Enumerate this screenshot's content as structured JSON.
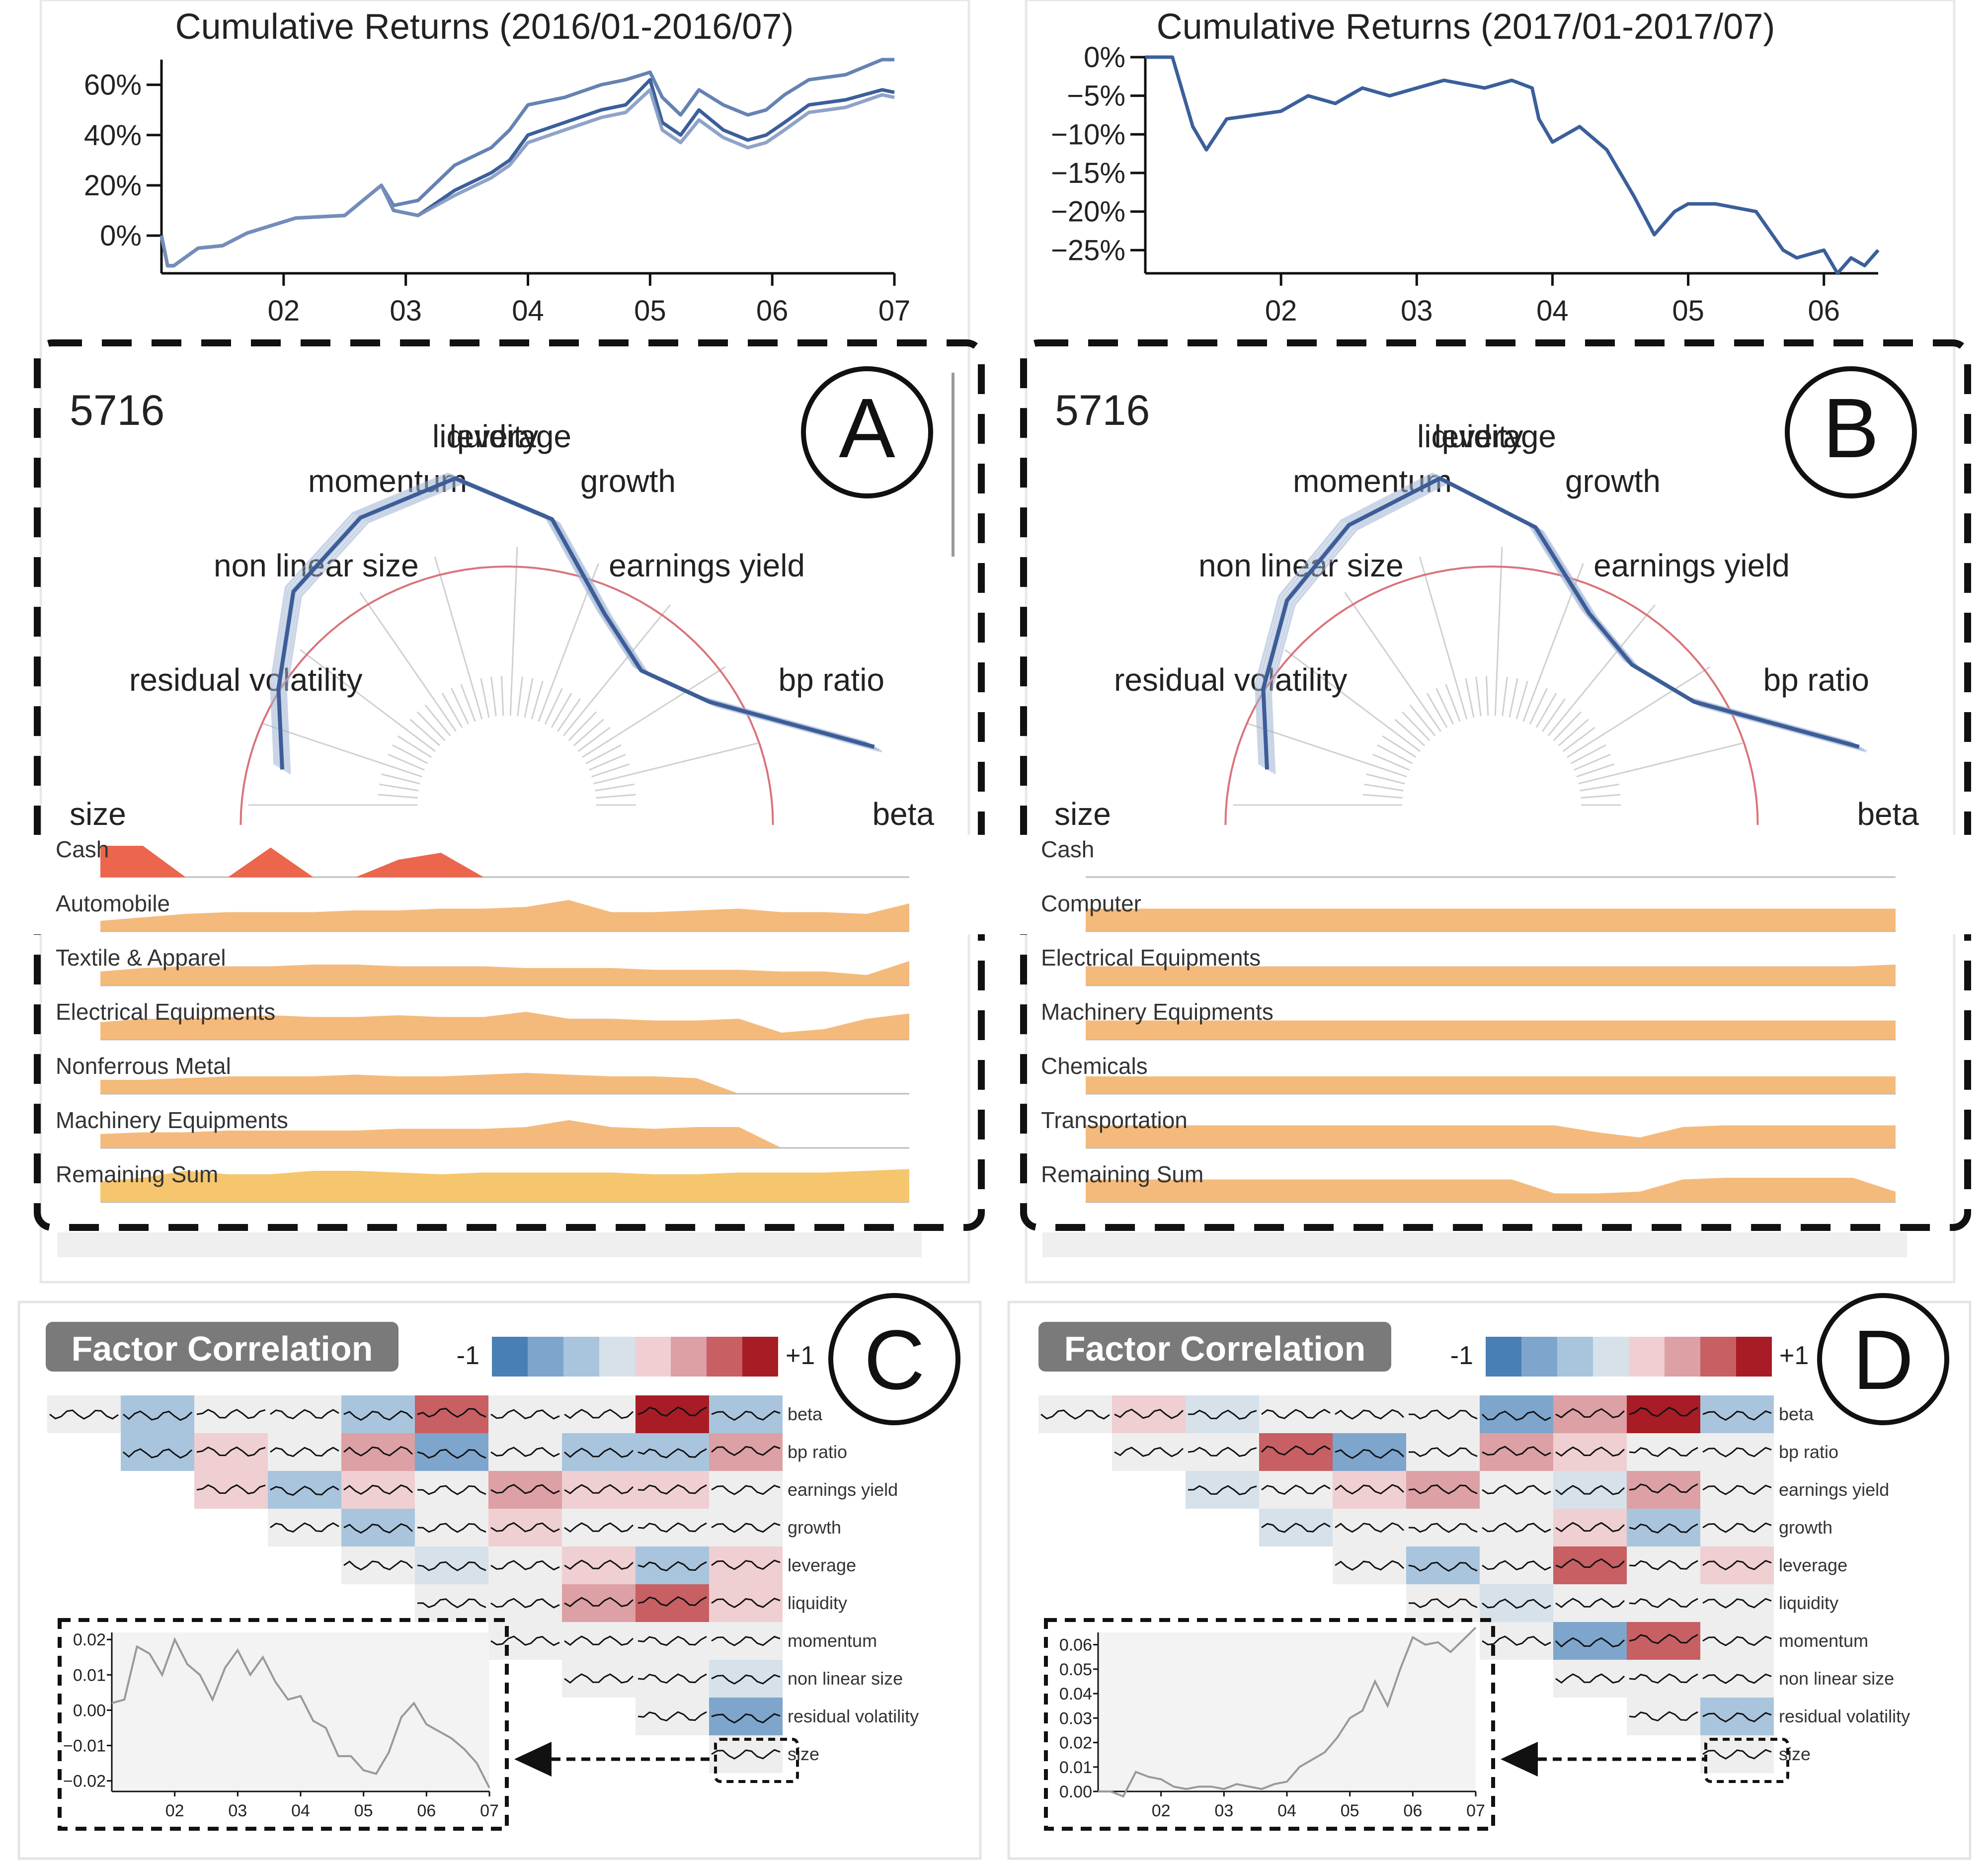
{
  "chart_data": [
    {
      "id": "returns_2016",
      "type": "line",
      "title": "Cumulative Returns (2016/01-2016/07)",
      "x_ticks": [
        "02",
        "03",
        "04",
        "05",
        "06",
        "07"
      ],
      "y_ticks": [
        "0%",
        "20%",
        "40%",
        "60%"
      ],
      "ylim": [
        -15,
        70
      ],
      "x_domain": [
        1,
        7
      ],
      "series": [
        {
          "name": "portfolio",
          "x": [
            1.0,
            1.05,
            1.1,
            1.3,
            1.5,
            1.7,
            1.9,
            2.1,
            2.5,
            2.8,
            2.9,
            3.1,
            3.4,
            3.7,
            3.85,
            4.0,
            4.3,
            4.6,
            4.8,
            5.0,
            5.1,
            5.25,
            5.4,
            5.6,
            5.8,
            5.95,
            6.1,
            6.3,
            6.6,
            6.9,
            7.0
          ],
          "values": [
            0,
            -12,
            -12,
            -5,
            -4,
            1,
            4,
            7,
            8,
            20,
            10,
            8,
            18,
            25,
            30,
            40,
            45,
            50,
            52,
            62,
            45,
            40,
            50,
            42,
            38,
            40,
            45,
            52,
            54,
            58,
            57
          ]
        },
        {
          "name": "benchmark-a",
          "x": [
            1.0,
            1.05,
            1.1,
            1.3,
            1.5,
            1.7,
            1.9,
            2.1,
            2.5,
            2.8,
            2.9,
            3.1,
            3.4,
            3.7,
            3.85,
            4.0,
            4.3,
            4.6,
            4.8,
            5.0,
            5.1,
            5.25,
            5.4,
            5.6,
            5.8,
            5.95,
            6.1,
            6.3,
            6.6,
            6.9,
            7.0
          ],
          "values": [
            0,
            -12,
            -12,
            -5,
            -4,
            1,
            4,
            7,
            8,
            20,
            12,
            14,
            28,
            35,
            42,
            52,
            55,
            60,
            62,
            65,
            55,
            48,
            58,
            52,
            48,
            50,
            56,
            62,
            64,
            70,
            70
          ]
        },
        {
          "name": "benchmark-b",
          "x": [
            1.0,
            1.05,
            1.1,
            1.3,
            1.5,
            1.7,
            1.9,
            2.1,
            2.5,
            2.8,
            2.9,
            3.1,
            3.4,
            3.7,
            3.85,
            4.0,
            4.3,
            4.6,
            4.8,
            5.0,
            5.1,
            5.25,
            5.4,
            5.6,
            5.8,
            5.95,
            6.1,
            6.3,
            6.6,
            6.9,
            7.0
          ],
          "values": [
            0,
            -12,
            -12,
            -5,
            -4,
            1,
            4,
            7,
            8,
            20,
            10,
            8,
            16,
            23,
            28,
            37,
            42,
            47,
            49,
            58,
            42,
            37,
            46,
            39,
            35,
            37,
            42,
            49,
            51,
            56,
            55
          ]
        }
      ]
    },
    {
      "id": "returns_2017",
      "type": "line",
      "title": "Cumulative Returns (2017/01-2017/07)",
      "x_ticks": [
        "02",
        "03",
        "04",
        "05",
        "06"
      ],
      "y_ticks": [
        "0%",
        "−5%",
        "−10%",
        "−15%",
        "−20%",
        "−25%"
      ],
      "ylim": [
        -28,
        0
      ],
      "x_domain": [
        1,
        6.4
      ],
      "series": [
        {
          "name": "portfolio",
          "x": [
            1.0,
            1.2,
            1.35,
            1.45,
            1.6,
            2.0,
            2.2,
            2.4,
            2.6,
            2.8,
            3.0,
            3.2,
            3.5,
            3.7,
            3.85,
            3.9,
            4.0,
            4.2,
            4.4,
            4.6,
            4.75,
            4.9,
            5.0,
            5.2,
            5.5,
            5.7,
            5.8,
            6.0,
            6.1,
            6.2,
            6.3,
            6.4
          ],
          "values": [
            0,
            0,
            -9,
            -12,
            -8,
            -7,
            -5,
            -6,
            -4,
            -5,
            -4,
            -3,
            -4,
            -3,
            -4,
            -8,
            -11,
            -9,
            -12,
            -18,
            -23,
            -20,
            -19,
            -19,
            -20,
            -25,
            -26,
            -25,
            -28,
            -26,
            -27,
            -25
          ]
        }
      ]
    },
    {
      "id": "factor_radar_A",
      "type": "radar",
      "label_id": "5716",
      "axes": [
        "size",
        "residual volatility",
        "non linear size",
        "momentum",
        "liquidity",
        "leverage",
        "growth",
        "earnings yield",
        "bp ratio",
        "beta"
      ],
      "portfolio": [
        0.55,
        0.62,
        0.73,
        0.78,
        0.8,
        0.7,
        0.52,
        0.46,
        0.55,
        0.9
      ],
      "benchmark": [
        0.42,
        0.42,
        0.42,
        0.42,
        0.42,
        0.42,
        0.42,
        0.42,
        0.42,
        0.42
      ]
    },
    {
      "id": "factor_radar_B",
      "type": "radar",
      "label_id": "5716",
      "axes": [
        "size",
        "residual volatility",
        "non linear size",
        "momentum",
        "liquidity",
        "leverage",
        "growth",
        "earnings yield",
        "bp ratio",
        "beta"
      ],
      "portfolio": [
        0.55,
        0.62,
        0.7,
        0.76,
        0.8,
        0.68,
        0.52,
        0.48,
        0.55,
        0.9
      ],
      "benchmark": [
        0.42,
        0.42,
        0.42,
        0.42,
        0.42,
        0.42,
        0.42,
        0.42,
        0.42,
        0.42
      ]
    },
    {
      "id": "industry_A",
      "type": "area",
      "rows": [
        {
          "name": "Cash",
          "values": [
            0.9,
            0.9,
            0.0,
            0.0,
            0.85,
            0.0,
            0.0,
            0.5,
            0.7,
            0.0,
            0.0,
            0.0,
            0.0,
            0.0,
            0.0,
            0.0,
            0.0,
            0.0,
            0.0,
            0.0
          ],
          "color": "#e9553a"
        },
        {
          "name": "Automobile",
          "values": [
            0.3,
            0.4,
            0.5,
            0.55,
            0.55,
            0.55,
            0.6,
            0.6,
            0.65,
            0.65,
            0.7,
            0.9,
            0.55,
            0.55,
            0.6,
            0.65,
            0.55,
            0.55,
            0.5,
            0.8
          ],
          "color": "#f3b26e"
        },
        {
          "name": "Textile & Apparel",
          "values": [
            0.4,
            0.5,
            0.55,
            0.55,
            0.55,
            0.6,
            0.6,
            0.55,
            0.55,
            0.55,
            0.5,
            0.5,
            0.5,
            0.45,
            0.45,
            0.45,
            0.4,
            0.4,
            0.3,
            0.7
          ],
          "color": "#f3b26e"
        },
        {
          "name": "Electrical Equipments",
          "values": [
            0.5,
            0.6,
            0.6,
            0.65,
            0.7,
            0.65,
            0.65,
            0.7,
            0.65,
            0.65,
            0.8,
            0.6,
            0.6,
            0.55,
            0.55,
            0.6,
            0.2,
            0.3,
            0.6,
            0.75
          ],
          "color": "#f3b26e"
        },
        {
          "name": "Nonferrous Metal",
          "values": [
            0.4,
            0.4,
            0.45,
            0.5,
            0.5,
            0.5,
            0.55,
            0.5,
            0.5,
            0.55,
            0.6,
            0.55,
            0.5,
            0.5,
            0.45,
            0.0,
            0.0,
            0.0,
            0.0,
            0.0
          ],
          "color": "#f3b26e"
        },
        {
          "name": "Machinery Equipments",
          "values": [
            0.4,
            0.45,
            0.45,
            0.5,
            0.5,
            0.5,
            0.5,
            0.55,
            0.55,
            0.55,
            0.6,
            0.8,
            0.6,
            0.55,
            0.6,
            0.6,
            0.0,
            0.0,
            0.0,
            0.0
          ],
          "color": "#f3b26e"
        },
        {
          "name": "Remaining Sum",
          "values": [
            0.6,
            0.7,
            0.9,
            0.8,
            0.8,
            0.9,
            0.9,
            0.85,
            0.8,
            0.85,
            0.85,
            0.85,
            0.85,
            0.8,
            0.8,
            0.85,
            0.85,
            0.85,
            0.9,
            0.95
          ],
          "color": "#f5c05e"
        }
      ]
    },
    {
      "id": "industry_B",
      "type": "area",
      "rows": [
        {
          "name": "Cash",
          "values": [
            0,
            0,
            0,
            0,
            0,
            0,
            0,
            0,
            0,
            0,
            0,
            0,
            0,
            0,
            0,
            0,
            0,
            0,
            0,
            0
          ],
          "color": "#e9553a"
        },
        {
          "name": "Computer",
          "values": [
            0.65,
            0.65,
            0.65,
            0.65,
            0.65,
            0.65,
            0.65,
            0.65,
            0.65,
            0.65,
            0.65,
            0.65,
            0.65,
            0.65,
            0.65,
            0.65,
            0.65,
            0.65,
            0.65,
            0.65
          ],
          "color": "#f3b26e"
        },
        {
          "name": "Electrical Equipments",
          "values": [
            0.55,
            0.55,
            0.55,
            0.55,
            0.55,
            0.55,
            0.55,
            0.55,
            0.55,
            0.55,
            0.55,
            0.55,
            0.55,
            0.55,
            0.55,
            0.55,
            0.55,
            0.55,
            0.55,
            0.6
          ],
          "color": "#f3b26e"
        },
        {
          "name": "Machinery Equipments",
          "values": [
            0.55,
            0.55,
            0.55,
            0.55,
            0.55,
            0.55,
            0.55,
            0.55,
            0.55,
            0.55,
            0.55,
            0.55,
            0.55,
            0.55,
            0.55,
            0.55,
            0.55,
            0.55,
            0.55,
            0.55
          ],
          "color": "#f3b26e"
        },
        {
          "name": "Chemicals",
          "values": [
            0.5,
            0.5,
            0.5,
            0.5,
            0.5,
            0.5,
            0.5,
            0.5,
            0.5,
            0.5,
            0.5,
            0.5,
            0.5,
            0.5,
            0.5,
            0.5,
            0.5,
            0.5,
            0.5,
            0.5
          ],
          "color": "#f3b26e"
        },
        {
          "name": "Transportation",
          "values": [
            0.65,
            0.65,
            0.65,
            0.65,
            0.65,
            0.65,
            0.65,
            0.65,
            0.65,
            0.65,
            0.65,
            0.65,
            0.45,
            0.3,
            0.6,
            0.65,
            0.65,
            0.65,
            0.65,
            0.65
          ],
          "color": "#f3b26e"
        },
        {
          "name": "Remaining Sum",
          "values": [
            0.65,
            0.65,
            0.65,
            0.65,
            0.65,
            0.65,
            0.65,
            0.65,
            0.65,
            0.65,
            0.65,
            0.25,
            0.25,
            0.3,
            0.65,
            0.7,
            0.7,
            0.7,
            0.7,
            0.3
          ],
          "color": "#f3b26e"
        }
      ]
    },
    {
      "id": "factor_correlation_C",
      "type": "heatmap",
      "title": "Factor Correlation",
      "scale_min": "-1",
      "scale_max": "+1",
      "scale_colors": [
        "#4a7fb5",
        "#7ea5cc",
        "#a9c5dd",
        "#d6e1ea",
        "#efcfd2",
        "#dca0a5",
        "#c75f63",
        "#a71c25"
      ],
      "factors": [
        "beta",
        "bp ratio",
        "earnings yield",
        "growth",
        "leverage",
        "liquidity",
        "momentum",
        "non linear size",
        "residual volatility",
        "size"
      ],
      "rows": [
        [
          0.0,
          -0.45,
          0.05,
          0.0,
          -0.4,
          0.6,
          0.0,
          0.05,
          0.85,
          -0.4
        ],
        [
          -0.45,
          0.1,
          0.0,
          0.3,
          -0.5,
          0.05,
          -0.3,
          -0.45,
          0.45
        ],
        [
          0.1,
          -0.35,
          0.1,
          0.0,
          0.25,
          0.15,
          0.1,
          0.0
        ],
        [
          0.0,
          -0.25,
          0.0,
          0.1,
          0.0,
          0.0,
          0.0
        ],
        [
          0.05,
          -0.2,
          0.05,
          0.15,
          -0.35,
          0.2
        ],
        [
          0.05,
          0.0,
          0.3,
          0.55,
          0.1
        ],
        [
          0.05,
          0.0,
          -0.05,
          0.0
        ],
        [
          0.0,
          0.0,
          -0.2
        ],
        [
          0.0,
          -0.6
        ],
        [
          0.0
        ]
      ],
      "inset": {
        "factor": "size",
        "x_ticks": [
          "02",
          "03",
          "04",
          "05",
          "06",
          "07"
        ],
        "y_ticks": [
          "0.02",
          "0.01",
          "0.00",
          "−0.01",
          "−0.02"
        ],
        "ylim": [
          -0.023,
          0.022
        ],
        "x": [
          1.0,
          1.2,
          1.4,
          1.6,
          1.8,
          2.0,
          2.2,
          2.4,
          2.6,
          2.8,
          3.0,
          3.2,
          3.4,
          3.6,
          3.8,
          4.0,
          4.2,
          4.4,
          4.6,
          4.8,
          5.0,
          5.2,
          5.4,
          5.6,
          5.8,
          6.0,
          6.2,
          6.4,
          6.6,
          6.8,
          7.0
        ],
        "values": [
          0.002,
          0.003,
          0.018,
          0.016,
          0.01,
          0.02,
          0.013,
          0.01,
          0.003,
          0.012,
          0.017,
          0.01,
          0.015,
          0.008,
          0.003,
          0.004,
          -0.003,
          -0.005,
          -0.013,
          -0.013,
          -0.017,
          -0.018,
          -0.012,
          -0.002,
          0.002,
          -0.004,
          -0.006,
          -0.008,
          -0.011,
          -0.015,
          -0.022
        ]
      }
    },
    {
      "id": "factor_correlation_D",
      "type": "heatmap",
      "title": "Factor Correlation",
      "scale_min": "-1",
      "scale_max": "+1",
      "scale_colors": [
        "#4a7fb5",
        "#7ea5cc",
        "#a9c5dd",
        "#d6e1ea",
        "#efcfd2",
        "#dca0a5",
        "#c75f63",
        "#a71c25"
      ],
      "factors": [
        "beta",
        "bp ratio",
        "earnings yield",
        "growth",
        "leverage",
        "liquidity",
        "momentum",
        "non linear size",
        "residual volatility",
        "size"
      ],
      "rows": [
        [
          0.0,
          0.15,
          -0.2,
          0.05,
          0.0,
          0.0,
          -0.5,
          0.3,
          0.75,
          -0.4
        ],
        [
          0.05,
          0.0,
          0.5,
          -0.55,
          0.05,
          0.35,
          0.1,
          0.0,
          0.0
        ],
        [
          -0.2,
          0.0,
          0.2,
          0.25,
          0.05,
          -0.15,
          0.45,
          0.0
        ],
        [
          -0.1,
          0.05,
          0.0,
          0.0,
          0.1,
          -0.3,
          0.0
        ],
        [
          0.0,
          -0.35,
          0.0,
          0.6,
          0.05,
          0.1
        ],
        [
          0.05,
          -0.2,
          0.0,
          0.0,
          0.0
        ],
        [
          0.05,
          -0.55,
          0.6,
          0.0
        ],
        [
          0.0,
          0.0,
          0.0
        ],
        [
          0.0,
          -0.25
        ],
        [
          0.0
        ]
      ],
      "inset": {
        "factor": "size",
        "x_ticks": [
          "02",
          "03",
          "04",
          "05",
          "06",
          "07"
        ],
        "y_ticks": [
          "0.06",
          "0.05",
          "0.04",
          "0.03",
          "0.02",
          "0.01",
          "0.00"
        ],
        "ylim": [
          0,
          0.065
        ],
        "x": [
          1.0,
          1.2,
          1.4,
          1.6,
          1.8,
          2.0,
          2.2,
          2.4,
          2.6,
          2.8,
          3.0,
          3.2,
          3.4,
          3.6,
          3.8,
          4.0,
          4.2,
          4.4,
          4.6,
          4.8,
          5.0,
          5.2,
          5.4,
          5.6,
          5.8,
          6.0,
          6.2,
          6.4,
          6.6,
          6.8,
          7.0
        ],
        "values": [
          0.0,
          0.0,
          -0.002,
          0.008,
          0.006,
          0.005,
          0.002,
          0.001,
          0.002,
          0.002,
          0.001,
          0.003,
          0.002,
          0.001,
          0.003,
          0.004,
          0.01,
          0.013,
          0.016,
          0.022,
          0.03,
          0.033,
          0.045,
          0.035,
          0.05,
          0.063,
          0.06,
          0.061,
          0.057,
          0.062,
          0.067
        ]
      }
    }
  ],
  "panel_labels": {
    "a": "A",
    "b": "B",
    "c": "C",
    "d": "D"
  }
}
